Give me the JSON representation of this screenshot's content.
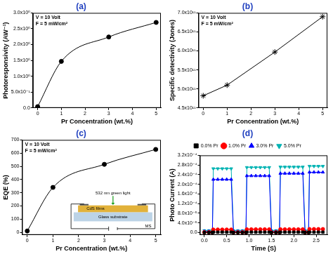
{
  "chart_data": [
    {
      "type": "line",
      "title": "(a)",
      "annotations": [
        "V = 10 Volt",
        "F = 5 mW/cm²"
      ],
      "x_label": "Pr Concentration (wt.%)",
      "y_label": "Photoresponsivity (AW⁻¹)",
      "x": [
        0,
        1,
        3,
        5
      ],
      "values": [
        0.04,
        1.47,
        2.24,
        2.7
      ],
      "color": "#000000",
      "marker": "circle",
      "line_style": "smooth",
      "xlim": [
        -0.2,
        5.2
      ],
      "xticks": [
        0,
        1,
        2,
        3,
        4,
        5
      ],
      "ylim": [
        0,
        3
      ],
      "yticks": [
        {
          "value": 0,
          "label": "0.0"
        },
        {
          "value": 0.5,
          "label": "5.0x10⁻¹"
        },
        {
          "value": 1,
          "label": "1.0x10⁰"
        },
        {
          "value": 1.5,
          "label": "1.5x10⁰"
        },
        {
          "value": 2,
          "label": "2.0x10⁰"
        },
        {
          "value": 2.5,
          "label": "2.5x10⁰"
        },
        {
          "value": 3,
          "label": "3.0x10⁰"
        }
      ],
      "grid": false
    },
    {
      "type": "line",
      "title": "(b)",
      "annotations": [
        "V = 10 Volt",
        "F = 5 mW/cm²"
      ],
      "x_label": "Pr Concentration (wt.%)",
      "y_label": "Specific detectivity (Jones)",
      "x": [
        0,
        1,
        3,
        5
      ],
      "values": [
        482000000000.0,
        510000000000.0,
        597000000000.0,
        690000000000.0
      ],
      "color": "#000000",
      "marker": "star",
      "line_style": "solid",
      "xlim": [
        -0.2,
        5.2
      ],
      "xticks": [
        0,
        1,
        2,
        3,
        4,
        5
      ],
      "ylim": [
        450000000000.0,
        700000000000.0
      ],
      "yticks": [
        {
          "value": 450000000000.0,
          "label": "4.5x10¹¹"
        },
        {
          "value": 500000000000.0,
          "label": "5.0x10¹¹"
        },
        {
          "value": 550000000000.0,
          "label": "5.5x10¹¹"
        },
        {
          "value": 600000000000.0,
          "label": "6.0x10¹¹"
        },
        {
          "value": 650000000000.0,
          "label": "6.5x10¹¹"
        },
        {
          "value": 700000000000.0,
          "label": "7.0x10¹¹"
        }
      ],
      "grid": false
    },
    {
      "type": "line",
      "title": "(c)",
      "annotations": [
        "V = 10 Volt",
        "F = 5 mW/cm²"
      ],
      "inset_labels": [
        "532 nm green light",
        "CdS films",
        "Glass substrate",
        "MS"
      ],
      "x_label": "Pr Concentration (wt.%)",
      "y_label": "EQE (%)",
      "x": [
        0,
        1,
        3,
        5
      ],
      "values": [
        10,
        340,
        515,
        628
      ],
      "color": "#000000",
      "marker": "circle",
      "line_style": "smooth",
      "xlim": [
        -0.2,
        5.2
      ],
      "xticks": [
        0,
        1,
        2,
        3,
        4,
        5
      ],
      "ylim": [
        -20,
        700
      ],
      "yticks": [
        0,
        100,
        200,
        300,
        400,
        500,
        600,
        700
      ],
      "grid": false
    },
    {
      "type": "line",
      "title": "(d)",
      "x_label": "Time (S)",
      "y_label": "Photo Current (A)",
      "x": [
        0,
        0.1,
        0.18,
        0.2,
        0.3,
        0.4,
        0.5,
        0.6,
        0.65,
        0.75,
        0.85,
        0.93,
        0.95,
        1.05,
        1.15,
        1.25,
        1.35,
        1.45,
        1.5,
        1.6,
        1.68,
        1.7,
        1.8,
        1.9,
        2.0,
        2.1,
        2.2,
        2.25,
        2.33,
        2.35,
        2.45,
        2.55,
        2.65
      ],
      "series": [
        {
          "name": "0.0% Pr",
          "color": "#000000",
          "marker": "square",
          "line_style": "solid",
          "values": [
            0,
            0,
            0,
            1.5e-06,
            1.5e-06,
            1.5e-06,
            1.5e-06,
            1.5e-06,
            0,
            0,
            0,
            0,
            1.5e-06,
            1.5e-06,
            1.5e-06,
            1.5e-06,
            1.5e-06,
            1.5e-06,
            0,
            0,
            0,
            1.5e-06,
            1.5e-06,
            1.5e-06,
            1.5e-06,
            1.5e-06,
            1.5e-06,
            0,
            0,
            1.5e-06,
            1.5e-06,
            1.5e-06,
            1.5e-06
          ]
        },
        {
          "name": "1.0% Pr",
          "color": "#ff0000",
          "marker": "circle",
          "line_style": "solid",
          "values": [
            1e-06,
            1e-06,
            1e-06,
            1.2e-05,
            1.2e-05,
            1.2e-05,
            1.2e-05,
            1.2e-05,
            1e-06,
            1e-06,
            1e-06,
            1e-06,
            1.3e-05,
            1.3e-05,
            1.3e-05,
            1.3e-05,
            1.3e-05,
            1.3e-05,
            1e-06,
            1e-06,
            1e-06,
            1.3e-05,
            1.3e-05,
            1.3e-05,
            1.3e-05,
            1.3e-05,
            1.3e-05,
            1e-06,
            1e-06,
            1.4e-05,
            1.4e-05,
            1.4e-05,
            1.4e-05
          ]
        },
        {
          "name": "3.0% Pr",
          "color": "#0000ff",
          "marker": "triangle",
          "line_style": "solid",
          "values": [
            5e-06,
            5e-06,
            5e-06,
            0.00022,
            0.00022,
            0.00022,
            0.00022,
            0.00022,
            5e-06,
            5e-06,
            5e-06,
            5e-06,
            0.000235,
            0.000235,
            0.000235,
            0.000235,
            0.000235,
            0.000235,
            5e-06,
            5e-06,
            5e-06,
            0.000245,
            0.000245,
            0.000245,
            0.000245,
            0.000245,
            0.000245,
            5e-06,
            5e-06,
            0.00025,
            0.00025,
            0.00025,
            0.00025
          ]
        },
        {
          "name": "5.0% Pr",
          "color": "#00b3b3",
          "marker": "triangle_down",
          "line_style": "solid",
          "values": [
            8e-06,
            8e-06,
            8e-06,
            0.000265,
            0.000265,
            0.000265,
            0.000265,
            0.000265,
            8e-06,
            8e-06,
            8e-06,
            8e-06,
            0.00027,
            0.00027,
            0.00027,
            0.00027,
            0.00027,
            0.00027,
            8e-06,
            8e-06,
            8e-06,
            0.000272,
            0.000272,
            0.000272,
            0.000272,
            0.000272,
            0.000272,
            8e-06,
            8e-06,
            0.000275,
            0.000275,
            0.000275,
            0.000275
          ]
        }
      ],
      "legend": "top",
      "xlim": [
        -0.1,
        2.75
      ],
      "xticks": [
        {
          "value": 0,
          "label": "0.0"
        },
        {
          "value": 0.5,
          "label": "0.5"
        },
        {
          "value": 1,
          "label": "1.0"
        },
        {
          "value": 1.5,
          "label": "1.5"
        },
        {
          "value": 2,
          "label": "2.0"
        },
        {
          "value": 2.5,
          "label": "2.5"
        }
      ],
      "ylim": [
        -1e-05,
        0.00032
      ],
      "yticks": [
        {
          "value": 0,
          "label": "0.0"
        },
        {
          "value": 4e-05,
          "label": "4.0x10⁻⁵"
        },
        {
          "value": 8e-05,
          "label": "8.0x10⁻⁵"
        },
        {
          "value": 0.00012,
          "label": "1.2x10⁻⁴"
        },
        {
          "value": 0.00016,
          "label": "1.6x10⁻⁴"
        },
        {
          "value": 0.0002,
          "label": "2.0x10⁻⁴"
        },
        {
          "value": 0.00024,
          "label": "2.4x10⁻⁴"
        },
        {
          "value": 0.00028,
          "label": "2.8x10⁻⁴"
        },
        {
          "value": 0.00032,
          "label": "3.2x10⁻⁴"
        }
      ],
      "grid": false
    }
  ]
}
